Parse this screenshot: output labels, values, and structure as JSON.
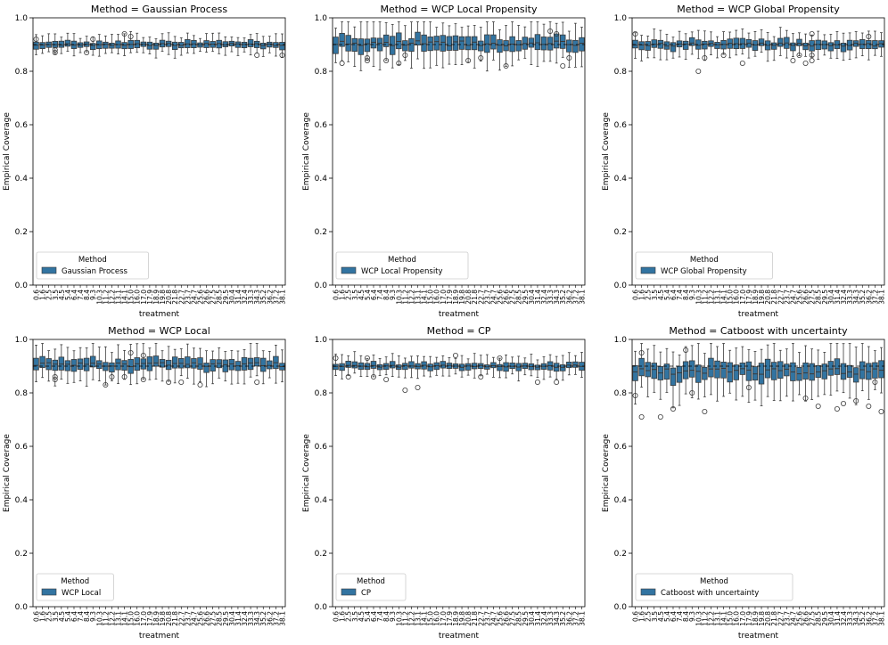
{
  "figure": {
    "box_color": "#3274a1",
    "line_color": "#3a3a3a",
    "reference_line": 0.9,
    "y_ticks": [
      "0.0",
      "0.2",
      "0.4",
      "0.6",
      "0.8",
      "1.0"
    ]
  },
  "chart_data": [
    {
      "type": "box",
      "title": "Method = Gaussian Process",
      "xlabel": "treatment",
      "ylabel": "Empirical Coverage",
      "ylim": [
        0,
        1
      ],
      "legend": {
        "title": "Method",
        "label": "Gaussian Process",
        "placement": "lower-left"
      },
      "categories": [
        "0.6",
        "1.6",
        "2.5",
        "3.5",
        "4.5",
        "5.4",
        "6.4",
        "7.4",
        "8.4",
        "9.3",
        "10.3",
        "11.2",
        "12.2",
        "13.1",
        "14.1",
        "15.0",
        "16.0",
        "17.0",
        "17.9",
        "18.9",
        "19.8",
        "20.8",
        "21.8",
        "22.7",
        "23.7",
        "24.7",
        "25.6",
        "26.6",
        "27.5",
        "28.5",
        "29.5",
        "30.4",
        "31.4",
        "32.4",
        "33.3",
        "34.3",
        "35.2",
        "36.2",
        "37.2",
        "38.1"
      ],
      "spread": {
        "median": 0.9,
        "q_half_range": 0.012,
        "whisker_range": 0.03
      },
      "outliers": [
        0.92,
        0.87,
        0.86,
        0.92,
        0.93,
        0.94,
        0.87,
        0.86,
        0.88
      ]
    },
    {
      "type": "box",
      "title": "Method = WCP Local Propensity",
      "xlabel": "treatment",
      "ylabel": "Empirical Coverage",
      "ylim": [
        0,
        1
      ],
      "legend": {
        "title": "Method",
        "label": "WCP Local Propensity",
        "placement": "lower-left"
      },
      "categories": [
        "0.6",
        "1.6",
        "2.5",
        "3.5",
        "4.5",
        "5.4",
        "6.4",
        "7.4",
        "8.4",
        "9.3",
        "10.3",
        "11.2",
        "12.2",
        "13.1",
        "14.1",
        "15.0",
        "16.0",
        "17.0",
        "17.9",
        "18.9",
        "19.8",
        "20.8",
        "21.8",
        "22.7",
        "23.7",
        "24.7",
        "25.6",
        "26.6",
        "27.5",
        "28.5",
        "29.5",
        "30.4",
        "31.4",
        "32.4",
        "33.3",
        "34.3",
        "35.2",
        "36.2",
        "37.2",
        "38.1"
      ],
      "spread": {
        "median": 0.905,
        "q_half_range": 0.025,
        "whisker_range": 0.065
      },
      "outliers": [
        0.83,
        0.82,
        0.84,
        0.85,
        0.83,
        0.84,
        0.85,
        0.86,
        0.95,
        0.94,
        0.85,
        0.84,
        0.82
      ]
    },
    {
      "type": "box",
      "title": "Method = WCP Global Propensity",
      "xlabel": "treatment",
      "ylabel": "Empirical Coverage",
      "ylim": [
        0,
        1
      ],
      "legend": {
        "title": "Method",
        "label": "WCP Global Propensity",
        "placement": "lower-left"
      },
      "categories": [
        "0.6",
        "1.6",
        "2.5",
        "3.5",
        "4.5",
        "5.4",
        "6.4",
        "7.4",
        "8.4",
        "9.3",
        "10.3",
        "11.2",
        "12.2",
        "13.1",
        "14.1",
        "15.0",
        "16.0",
        "17.0",
        "17.9",
        "18.9",
        "19.8",
        "20.8",
        "21.8",
        "22.7",
        "23.7",
        "24.7",
        "25.6",
        "26.6",
        "27.5",
        "28.5",
        "29.5",
        "30.4",
        "31.4",
        "32.4",
        "33.3",
        "34.3",
        "35.2",
        "36.2",
        "37.2",
        "38.1"
      ],
      "spread": {
        "median": 0.9,
        "q_half_range": 0.015,
        "whisker_range": 0.04
      },
      "outliers": [
        0.8,
        0.84,
        0.83,
        0.85,
        0.94,
        0.86,
        0.93,
        0.83,
        0.84,
        0.86,
        0.94,
        0.86
      ]
    },
    {
      "type": "box",
      "title": "Method = WCP Local",
      "xlabel": "treatment",
      "ylabel": "Empirical Coverage",
      "ylim": [
        0,
        1
      ],
      "legend": {
        "title": "Method",
        "label": "WCP Local",
        "placement": "lower-left"
      },
      "categories": [
        "0.6",
        "1.6",
        "2.5",
        "3.5",
        "4.5",
        "5.4",
        "6.4",
        "7.4",
        "8.4",
        "9.3",
        "10.3",
        "11.2",
        "12.2",
        "13.1",
        "14.1",
        "15.0",
        "16.0",
        "17.0",
        "17.9",
        "18.9",
        "19.8",
        "20.8",
        "21.8",
        "22.7",
        "23.7",
        "24.7",
        "25.6",
        "26.6",
        "27.5",
        "28.5",
        "29.5",
        "30.4",
        "31.4",
        "32.4",
        "33.3",
        "34.3",
        "35.2",
        "36.2",
        "37.2",
        "38.1"
      ],
      "spread": {
        "median": 0.905,
        "q_half_range": 0.02,
        "whisker_range": 0.055
      },
      "outliers": [
        0.83,
        0.84,
        0.83,
        0.85,
        0.86,
        0.84,
        0.86,
        0.85,
        0.95,
        0.94,
        0.86,
        0.84
      ]
    },
    {
      "type": "box",
      "title": "Method = CP",
      "xlabel": "treatment",
      "ylabel": "Empirical Coverage",
      "ylim": [
        0,
        1
      ],
      "legend": {
        "title": "Method",
        "label": "CP",
        "placement": "lower-left"
      },
      "categories": [
        "0.6",
        "1.6",
        "2.5",
        "3.5",
        "4.5",
        "5.4",
        "6.4",
        "7.4",
        "8.4",
        "9.3",
        "10.3",
        "11.2",
        "12.2",
        "13.1",
        "14.1",
        "15.0",
        "16.0",
        "17.0",
        "17.9",
        "18.9",
        "19.8",
        "20.8",
        "21.8",
        "22.7",
        "23.7",
        "24.7",
        "25.6",
        "26.6",
        "27.5",
        "28.5",
        "29.5",
        "30.4",
        "31.4",
        "32.4",
        "33.3",
        "34.3",
        "35.2",
        "36.2",
        "37.2",
        "38.1"
      ],
      "spread": {
        "median": 0.9,
        "q_half_range": 0.012,
        "whisker_range": 0.035
      },
      "outliers": [
        0.81,
        0.82,
        0.84,
        0.86,
        0.93,
        0.86,
        0.93,
        0.94,
        0.86,
        0.85,
        0.93,
        0.84
      ]
    },
    {
      "type": "box",
      "title": "Method = Catboost with uncertainty",
      "xlabel": "treatment",
      "ylabel": "Empirical Coverage",
      "ylim": [
        0,
        1
      ],
      "legend": {
        "title": "Method",
        "label": "Catboost with uncertainty",
        "placement": "lower-left"
      },
      "categories": [
        "0.6",
        "1.6",
        "2.5",
        "3.5",
        "4.5",
        "5.4",
        "6.4",
        "7.4",
        "8.4",
        "9.3",
        "10.3",
        "11.2",
        "12.2",
        "13.1",
        "14.1",
        "15.0",
        "16.0",
        "17.0",
        "17.9",
        "18.9",
        "19.8",
        "20.8",
        "21.8",
        "22.7",
        "23.7",
        "24.7",
        "25.6",
        "26.6",
        "27.5",
        "28.5",
        "29.5",
        "30.4",
        "31.4",
        "32.4",
        "33.3",
        "34.3",
        "35.2",
        "36.2",
        "37.2",
        "38.1"
      ],
      "spread": {
        "median": 0.88,
        "q_half_range": 0.03,
        "whisker_range": 0.08
      },
      "outliers": [
        0.73,
        0.74,
        0.71,
        0.75,
        0.78,
        0.8,
        0.95,
        0.77,
        0.75,
        0.79,
        0.96,
        0.71,
        0.74,
        0.73,
        0.82,
        0.84,
        0.76
      ]
    }
  ]
}
